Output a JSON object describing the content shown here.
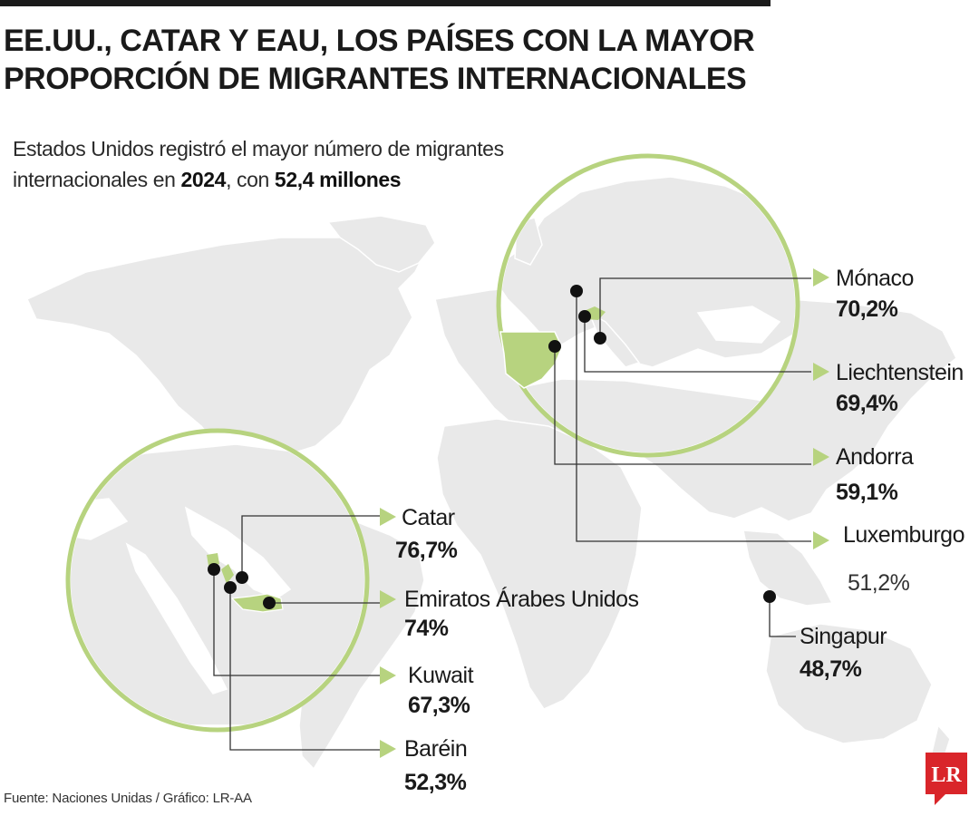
{
  "header": {
    "title_line1": "EE.UU., CATAR Y EAU, LOS PAÍSES CON LA MAYOR",
    "title_line2": "PROPORCIÓN DE MIGRANTES INTERNACIONALES"
  },
  "subtitle": {
    "line1": "Estados Unidos registró el mayor número de migrantes",
    "line2_pre": "internacionales en ",
    "year": "2024",
    "line2_mid": ", con ",
    "total": "52,4 millones"
  },
  "countries": [
    {
      "name": "Mónaco",
      "value": "70,2%"
    },
    {
      "name": "Liechtenstein",
      "value": "69,4%"
    },
    {
      "name": "Andorra",
      "value": "59,1%"
    },
    {
      "name": "Luxemburgo",
      "value": "51,2%"
    },
    {
      "name": "Singapur",
      "value": "48,7%"
    },
    {
      "name": "Catar",
      "value": "76,7%"
    },
    {
      "name": "Emiratos Árabes Unidos",
      "value": "74%"
    },
    {
      "name": "Kuwait",
      "value": "67,3%"
    },
    {
      "name": "Baréin",
      "value": "52,3%"
    }
  ],
  "footer": {
    "source": "Fuente: Naciones Unidas / Gráfico: LR-AA",
    "logo_text": "LR"
  },
  "colors": {
    "accent_green": "#b7d37f",
    "land_gray": "#e9e9e9",
    "border_gray": "#ffffff",
    "marker": "#111111",
    "logo_red": "#d9252a"
  }
}
